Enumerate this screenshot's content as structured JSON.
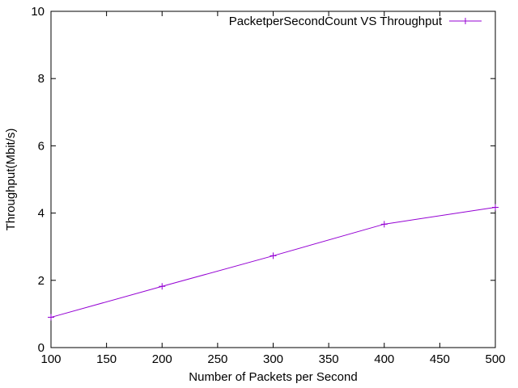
{
  "chart_data": {
    "type": "line",
    "title": "",
    "xlabel": "Number of Packets per Second",
    "ylabel": "Throughput(Mbit/s)",
    "xlim": [
      100,
      500
    ],
    "ylim": [
      0,
      10
    ],
    "xticks": [
      100,
      150,
      200,
      250,
      300,
      350,
      400,
      450,
      500
    ],
    "yticks": [
      0,
      2,
      4,
      6,
      8,
      10
    ],
    "grid": false,
    "legend_position": "top-right",
    "series": [
      {
        "name": "PacketperSecondCount VS Throughput",
        "color": "#9400d3",
        "marker": "plus",
        "x": [
          100,
          200,
          300,
          400,
          500
        ],
        "y": [
          0.9,
          1.82,
          2.73,
          3.67,
          4.17
        ]
      }
    ]
  }
}
